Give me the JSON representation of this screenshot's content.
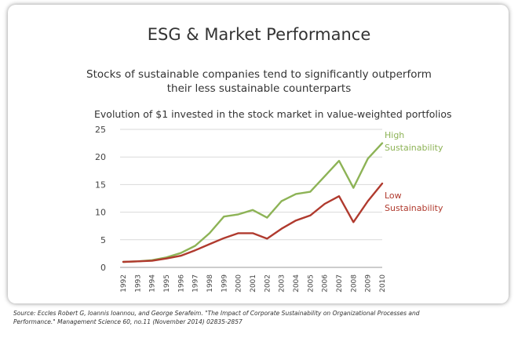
{
  "title": "ESG & Market Performance",
  "subtitle": "Stocks of sustainable companies tend to significantly outperform their less sustainable counterparts",
  "source": "Source: Eccles Robert G, Ioannis Ioannou, and George Serafeim. \"The Impact of Corporate Sustainability on Organizational Processes and Performance.\" Management Science 60, no.11 (November 2014) 02835-2857",
  "chart_data": {
    "type": "line",
    "title": "Evolution of $1 invested in the stock market in value-weighted portfolios",
    "xlabel": "",
    "ylabel": "",
    "x": [
      "1992",
      "1993",
      "1994",
      "1995",
      "1996",
      "1997",
      "1998",
      "1999",
      "2000",
      "2001",
      "2002",
      "2003",
      "2004",
      "2005",
      "2006",
      "2007",
      "2008",
      "2009",
      "2010"
    ],
    "ylim": [
      0,
      25
    ],
    "yticks": [
      0,
      5,
      10,
      15,
      20,
      25
    ],
    "grid": true,
    "series": [
      {
        "name": "High Sustainability",
        "color": "#8db356",
        "values": [
          1.0,
          1.1,
          1.3,
          1.8,
          2.6,
          3.9,
          6.2,
          9.2,
          9.6,
          10.4,
          9.0,
          12.0,
          13.3,
          13.7,
          16.5,
          19.3,
          14.4,
          19.7,
          22.5
        ]
      },
      {
        "name": "Low Sustainability",
        "color": "#b03a2e",
        "values": [
          1.0,
          1.1,
          1.2,
          1.6,
          2.1,
          3.1,
          4.2,
          5.3,
          6.2,
          6.2,
          5.2,
          7.0,
          8.5,
          9.4,
          11.5,
          12.9,
          8.2,
          12.0,
          15.2
        ]
      }
    ],
    "legend": [
      {
        "line1": "High",
        "line2": "Sustainability",
        "series": 0
      },
      {
        "line1": "Low",
        "line2": "Sustainability",
        "series": 1
      }
    ]
  }
}
